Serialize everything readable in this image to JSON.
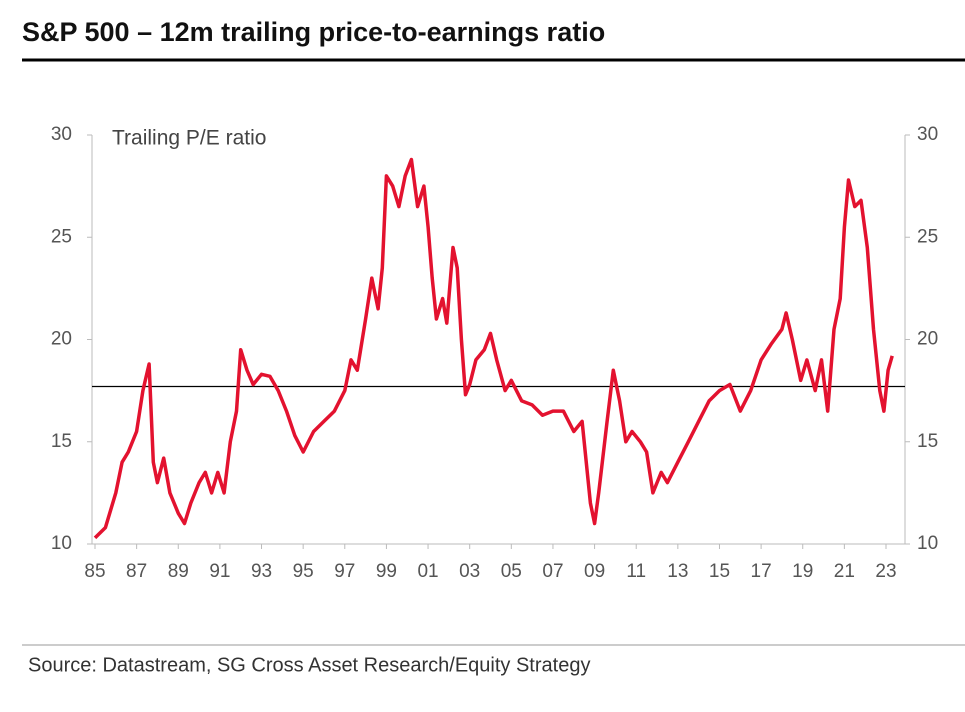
{
  "chart_data": {
    "type": "line",
    "title": "S&P 500 – 12m trailing price-to-earnings ratio",
    "annotation": "Trailing P/E ratio",
    "source": "Source: Datastream, SG Cross Asset Research/Equity Strategy",
    "x": [
      1985.0,
      1985.5,
      1986.0,
      1986.3,
      1986.6,
      1987.0,
      1987.3,
      1987.6,
      1987.8,
      1988.0,
      1988.3,
      1988.6,
      1989.0,
      1989.3,
      1989.6,
      1990.0,
      1990.3,
      1990.6,
      1990.9,
      1991.2,
      1991.5,
      1991.8,
      1992.0,
      1992.3,
      1992.6,
      1993.0,
      1993.4,
      1993.8,
      1994.2,
      1994.6,
      1995.0,
      1995.5,
      1996.0,
      1996.5,
      1997.0,
      1997.3,
      1997.6,
      1998.0,
      1998.3,
      1998.6,
      1998.8,
      1999.0,
      1999.3,
      1999.6,
      1999.9,
      2000.2,
      2000.5,
      2000.8,
      2001.0,
      2001.2,
      2001.4,
      2001.7,
      2001.9,
      2002.2,
      2002.4,
      2002.6,
      2002.8,
      2003.0,
      2003.3,
      2003.7,
      2004.0,
      2004.3,
      2004.7,
      2005.0,
      2005.5,
      2006.0,
      2006.5,
      2007.0,
      2007.5,
      2008.0,
      2008.4,
      2008.8,
      2009.0,
      2009.2,
      2009.6,
      2009.9,
      2010.2,
      2010.5,
      2010.8,
      2011.2,
      2011.5,
      2011.8,
      2012.2,
      2012.5,
      2013.0,
      2013.5,
      2014.0,
      2014.5,
      2015.0,
      2015.5,
      2016.0,
      2016.5,
      2017.0,
      2017.5,
      2018.0,
      2018.2,
      2018.5,
      2018.9,
      2019.2,
      2019.6,
      2019.9,
      2020.2,
      2020.5,
      2020.8,
      2021.0,
      2021.2,
      2021.5,
      2021.8,
      2022.1,
      2022.4,
      2022.7,
      2022.9,
      2023.1,
      2023.3
    ],
    "series": [
      {
        "name": "Trailing P/E ratio",
        "color": "#e3122f",
        "values": [
          10.3,
          10.8,
          12.5,
          14.0,
          14.5,
          15.5,
          17.5,
          18.8,
          14.0,
          13.0,
          14.2,
          12.5,
          11.5,
          11.0,
          12.0,
          13.0,
          13.5,
          12.5,
          13.5,
          12.5,
          15.0,
          16.5,
          19.5,
          18.5,
          17.8,
          18.3,
          18.2,
          17.5,
          16.5,
          15.3,
          14.5,
          15.5,
          16.0,
          16.5,
          17.5,
          19.0,
          18.5,
          21.0,
          23.0,
          21.5,
          23.5,
          28.0,
          27.5,
          26.5,
          28.0,
          28.8,
          26.5,
          27.5,
          25.5,
          23.0,
          21.0,
          22.0,
          20.8,
          24.5,
          23.5,
          20.0,
          17.3,
          17.8,
          19.0,
          19.5,
          20.3,
          19.0,
          17.5,
          18.0,
          17.0,
          16.8,
          16.3,
          16.5,
          16.5,
          15.5,
          16.0,
          12.0,
          11.0,
          12.5,
          16.0,
          18.5,
          17.0,
          15.0,
          15.5,
          15.0,
          14.5,
          12.5,
          13.5,
          13.0,
          14.0,
          15.0,
          16.0,
          17.0,
          17.5,
          17.8,
          16.5,
          17.5,
          19.0,
          19.8,
          20.5,
          21.3,
          20.0,
          18.0,
          19.0,
          17.5,
          19.0,
          16.5,
          20.5,
          22.0,
          25.5,
          27.8,
          26.5,
          26.8,
          24.5,
          20.5,
          17.5,
          16.5,
          18.5,
          19.2
        ]
      }
    ],
    "hline": 17.7,
    "xlim": [
      1985,
      2023
    ],
    "xticks": [
      {
        "value": 1985,
        "label": "85"
      },
      {
        "value": 1987,
        "label": "87"
      },
      {
        "value": 1989,
        "label": "89"
      },
      {
        "value": 1991,
        "label": "91"
      },
      {
        "value": 1993,
        "label": "93"
      },
      {
        "value": 1995,
        "label": "95"
      },
      {
        "value": 1997,
        "label": "97"
      },
      {
        "value": 1999,
        "label": "99"
      },
      {
        "value": 2001,
        "label": "01"
      },
      {
        "value": 2003,
        "label": "03"
      },
      {
        "value": 2005,
        "label": "05"
      },
      {
        "value": 2007,
        "label": "07"
      },
      {
        "value": 2009,
        "label": "09"
      },
      {
        "value": 2011,
        "label": "11"
      },
      {
        "value": 2013,
        "label": "13"
      },
      {
        "value": 2015,
        "label": "15"
      },
      {
        "value": 2017,
        "label": "17"
      },
      {
        "value": 2019,
        "label": "19"
      },
      {
        "value": 2021,
        "label": "21"
      },
      {
        "value": 2023,
        "label": "23"
      }
    ],
    "ylim": [
      10,
      30
    ],
    "yticks": [
      10,
      15,
      20,
      25,
      30
    ],
    "y2lim": [
      10,
      30
    ],
    "y2ticks": [
      10,
      15,
      20,
      25,
      30
    ]
  }
}
